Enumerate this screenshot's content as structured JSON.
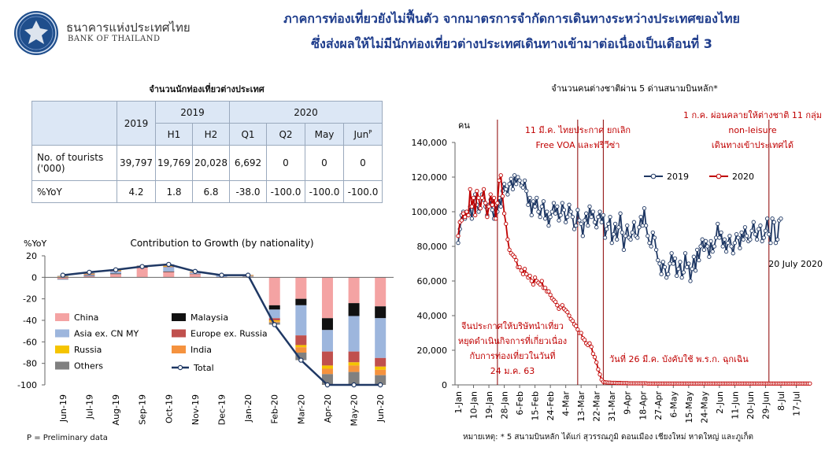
{
  "header": {
    "logo_th": "ธนาคารแห่งประเทศไทย",
    "logo_en": "BANK OF THAILAND",
    "title_line1": "ภาคการท่องเที่ยวยังไม่ฟื้นตัว จากมาตรการจำกัดการเดินทางระหว่างประเทศของไทย",
    "title_line2": "ซึ่งส่งผลให้ไม่มีนักท่องเที่ยวต่างประเทศเดินทางเข้ามาต่อเนื่องเป็นเดือนที่ 3"
  },
  "table": {
    "title": "จำนวนนักท่องเที่ยวต่างประเทศ",
    "col_2019": "2019",
    "group_2019": "2019",
    "group_2020": "2020",
    "h1": "H1",
    "h2": "H2",
    "q1": "Q1",
    "q2": "Q2",
    "may": "May",
    "jun": "Jun",
    "jun_sup": "P",
    "row_tourists_label": "No. of tourists ('000)",
    "row_tourists": [
      "39,797",
      "19,769",
      "20,028",
      "6,692",
      "0",
      "0",
      "0"
    ],
    "row_yoy_label": "%YoY",
    "row_yoy": [
      "4.2",
      "1.8",
      "6.8",
      "-38.0",
      "-100.0",
      "-100.0",
      "-100.0"
    ]
  },
  "footnotes": {
    "left": "P = Preliminary data",
    "right": "หมายเหตุ: * 5 สนามบินหลัก ได้แก่ สุวรรณภูมิ ดอนเมือง เชียงใหม่ หาดใหญ่ และภูเก็ต"
  },
  "chart_data": [
    {
      "type": "bar",
      "title": "Contribution to Growth (by nationality)",
      "ylabel": "%YoY",
      "ylim": [
        -100,
        20
      ],
      "yticks": [
        "20",
        "0",
        "-20",
        "-40",
        "-60",
        "-80",
        "-100"
      ],
      "categories": [
        "Jun-19",
        "Jul-19",
        "Aug-19",
        "Sep-19",
        "Oct-19",
        "Nov-19",
        "Dec-19",
        "Jan-20",
        "Feb-20",
        "Mar-20",
        "Apr-20",
        "May-20",
        "Jun-20"
      ],
      "stacked": true,
      "legend_position": "inside-bottom-left",
      "series": [
        {
          "name": "China",
          "color": "#f4a3a3",
          "values": [
            -1.5,
            1.0,
            3.0,
            9.0,
            5.0,
            3.0,
            -0.5,
            0.5,
            -26,
            -20,
            -38,
            -24,
            -27
          ]
        },
        {
          "name": "Malaysia",
          "color": "#111111",
          "values": [
            -0.3,
            0.3,
            0.5,
            0.5,
            0.5,
            0.3,
            0.2,
            0.2,
            -4,
            -6,
            -11,
            -12,
            -11
          ]
        },
        {
          "name": "Asia ex. CN MY",
          "color": "#9db6dd",
          "values": [
            -0.5,
            1.0,
            2.0,
            0.5,
            4.0,
            1.0,
            1.5,
            0.5,
            -8,
            -28,
            -20,
            -33,
            -37
          ]
        },
        {
          "name": "Europe ex. Russia",
          "color": "#c0504d",
          "values": [
            0.3,
            0.5,
            0.5,
            0.2,
            0.5,
            0.3,
            0.2,
            0.3,
            -2,
            -9,
            -13,
            -10,
            -8
          ]
        },
        {
          "name": "Russia",
          "color": "#f5c400",
          "values": [
            0.2,
            0.3,
            0.5,
            0.2,
            0.5,
            0.3,
            0.2,
            0.3,
            -1,
            -2,
            -3,
            -3,
            -3
          ]
        },
        {
          "name": "India",
          "color": "#f5923e",
          "values": [
            0.3,
            0.3,
            0.3,
            0.2,
            0.5,
            0.3,
            0.2,
            0.3,
            -1,
            -5,
            -5,
            -6,
            -5
          ]
        },
        {
          "name": "Others",
          "color": "#808080",
          "values": [
            0.5,
            0.6,
            0.2,
            0.4,
            1.0,
            0.0,
            0.2,
            0.2,
            -2,
            -7,
            -10,
            -12,
            -9
          ]
        }
      ],
      "total": {
        "name": "Total",
        "color": "#1f3864",
        "values": [
          2.0,
          4.7,
          7.0,
          10.0,
          12.0,
          5.5,
          2.0,
          2.0,
          -44.0,
          -77.0,
          -100.0,
          -100.0,
          -100.0
        ]
      }
    },
    {
      "type": "line",
      "title": "จำนวนคนต่างชาติผ่าน 5 ด่านสนามบินหลัก*",
      "ylabel": "คน",
      "ylim": [
        0,
        140000
      ],
      "yticks": [
        "140,000",
        "120,000",
        "100,000",
        "80,000",
        "60,000",
        "40,000",
        "20,000",
        "0"
      ],
      "xlim": [
        "2020-01-01",
        "2020-07-20"
      ],
      "x_tick_labels": [
        "1-Jan",
        "10-Jan",
        "19-Jan",
        "28-Jan",
        "6-Feb",
        "15-Feb",
        "24-Feb",
        "4-Mar",
        "13-Mar",
        "22-Mar",
        "31-Mar",
        "9-Apr",
        "18-Apr",
        "27-Apr",
        "6-May",
        "15-May",
        "24-May",
        "2-Jun",
        "11-Jun",
        "20-Jun",
        "29-Jun",
        "8-Jul",
        "17-Jul"
      ],
      "legend_position": "top",
      "series": [
        {
          "name": "2019",
          "color": "#1f3864",
          "x_start": "2020-01-01",
          "x_step_days": 1,
          "values": [
            82000,
            90000,
            98000,
            100000,
            96000,
            100000,
            98000,
            103000,
            96000,
            104000,
            110000,
            104000,
            100000,
            102000,
            110000,
            107000,
            103000,
            98000,
            104000,
            107000,
            101000,
            96000,
            104000,
            100000,
            108000,
            103000,
            112000,
            116000,
            113000,
            110000,
            116000,
            119000,
            113000,
            121000,
            116000,
            120000,
            118000,
            115000,
            114000,
            118000,
            112000,
            104000,
            108000,
            98000,
            106000,
            103000,
            108000,
            100000,
            97000,
            103000,
            106000,
            96000,
            100000,
            92000,
            97000,
            100000,
            105000,
            99000,
            103000,
            95000,
            98000,
            105000,
            101000,
            94000,
            97000,
            104000,
            100000,
            97000,
            90000,
            92000,
            101000,
            95000,
            93000,
            86000,
            95000,
            99000,
            92000,
            103000,
            97000,
            100000,
            94000,
            91000,
            97000,
            100000,
            94000,
            98000,
            85000,
            90000,
            93000,
            97000,
            82000,
            87000,
            93000,
            84000,
            91000,
            99000,
            88000,
            78000,
            86000,
            92000,
            85000,
            84000,
            88000,
            94000,
            86000,
            85000,
            91000,
            97000,
            92000,
            102000,
            92000,
            86000,
            82000,
            80000,
            88000,
            85000,
            78000,
            72000,
            70000,
            64000,
            71000,
            68000,
            62000,
            64000,
            70000,
            76000,
            70000,
            73000,
            63000,
            67000,
            71000,
            62000,
            65000,
            76000,
            68000,
            70000,
            60000,
            67000,
            74000,
            66000,
            78000,
            72000,
            80000,
            84000,
            78000,
            83000,
            80000,
            74000,
            83000,
            77000,
            80000,
            85000,
            93000,
            85000,
            88000,
            80000,
            84000,
            77000,
            82000,
            86000,
            80000,
            76000,
            82000,
            87000,
            85000,
            79000,
            88000,
            84000,
            91000,
            86000,
            83000,
            84000,
            89000,
            94000,
            87000,
            84000,
            90000,
            92000,
            83000,
            85000,
            89000,
            96000,
            87000,
            82000,
            96000,
            94000,
            82000,
            84000,
            95000,
            96000
          ]
        },
        {
          "name": "2020",
          "color": "#c00000",
          "x_start": "2020-01-01",
          "x_step_days": 1,
          "values": [
            86000,
            94000,
            95000,
            99000,
            97000,
            100000,
            98000,
            113000,
            103000,
            108000,
            98000,
            112000,
            108000,
            102000,
            108000,
            113000,
            105000,
            97000,
            103000,
            110000,
            104000,
            108000,
            96000,
            105000,
            118000,
            121000,
            109000,
            99000,
            93000,
            84000,
            78000,
            76000,
            75000,
            74000,
            72000,
            68000,
            68000,
            66000,
            64000,
            67000,
            64000,
            62000,
            63000,
            60000,
            58000,
            62000,
            60000,
            59000,
            58000,
            60000,
            56000,
            56000,
            54000,
            54000,
            52000,
            50000,
            49000,
            48000,
            46000,
            44000,
            45000,
            46000,
            44000,
            43000,
            42000,
            40000,
            38000,
            37000,
            35000,
            34000,
            32000,
            30000,
            30000,
            27000,
            26000,
            24000,
            23000,
            24000,
            22000,
            18000,
            16000,
            13000,
            9000,
            6000,
            3000,
            1800,
            1500,
            1400,
            1300,
            1300,
            1200,
            1200,
            1200,
            1100,
            1100,
            1100,
            1000,
            1000,
            1000,
            1000,
            900,
            900,
            900,
            900,
            900,
            900,
            900,
            900,
            900,
            900,
            900,
            800,
            800,
            800,
            800,
            800,
            800,
            800,
            800,
            800,
            800,
            800,
            800,
            800,
            800,
            800,
            800,
            800,
            800,
            800,
            800,
            800,
            800,
            800,
            800,
            800,
            800,
            800,
            800,
            800,
            800,
            800,
            800,
            800,
            800,
            800,
            800,
            800,
            800,
            800,
            800,
            800,
            800,
            800,
            800,
            800,
            800,
            800,
            800,
            800,
            800,
            800,
            800,
            800,
            800,
            800,
            800,
            800,
            800,
            800,
            800,
            800,
            800,
            800,
            800,
            800,
            800,
            800,
            800,
            800,
            800,
            800,
            800,
            800,
            800,
            800,
            800,
            800,
            800,
            800,
            800,
            800,
            800,
            800,
            800,
            800,
            800,
            800,
            800,
            800,
            800,
            800,
            800,
            800,
            800,
            800,
            800
          ]
        }
      ],
      "events": [
        {
          "date": "2020-01-24",
          "label_lines": [
            "จีนประกาศให้บริษัทนำเที่ยว",
            "หยุดดำเนินกิจการที่เกี่ยวเนื่อง",
            "กับการท่องเที่ยวในวันที่",
            "24 ม.ค. 63"
          ]
        },
        {
          "date": "2020-03-11",
          "label_lines": [
            "11 มี.ค. ไทยประกาศ ยกเลิก",
            "Free VOA  และฟรีวีซ่า"
          ]
        },
        {
          "date": "2020-03-26",
          "label_lines": [
            "วันที่ 26 มี.ค. บังคับใช้ พ.ร.ก. ฉุกเฉิน"
          ]
        },
        {
          "date": "2020-07-01",
          "label_lines": [
            "1 ก.ค. ผ่อนคลายให้ต่างชาติ 11 กลุ่ม",
            "non-leisure",
            "เดินทางเข้าประเทศได้"
          ]
        }
      ],
      "annotation": "20 July 2020"
    }
  ]
}
